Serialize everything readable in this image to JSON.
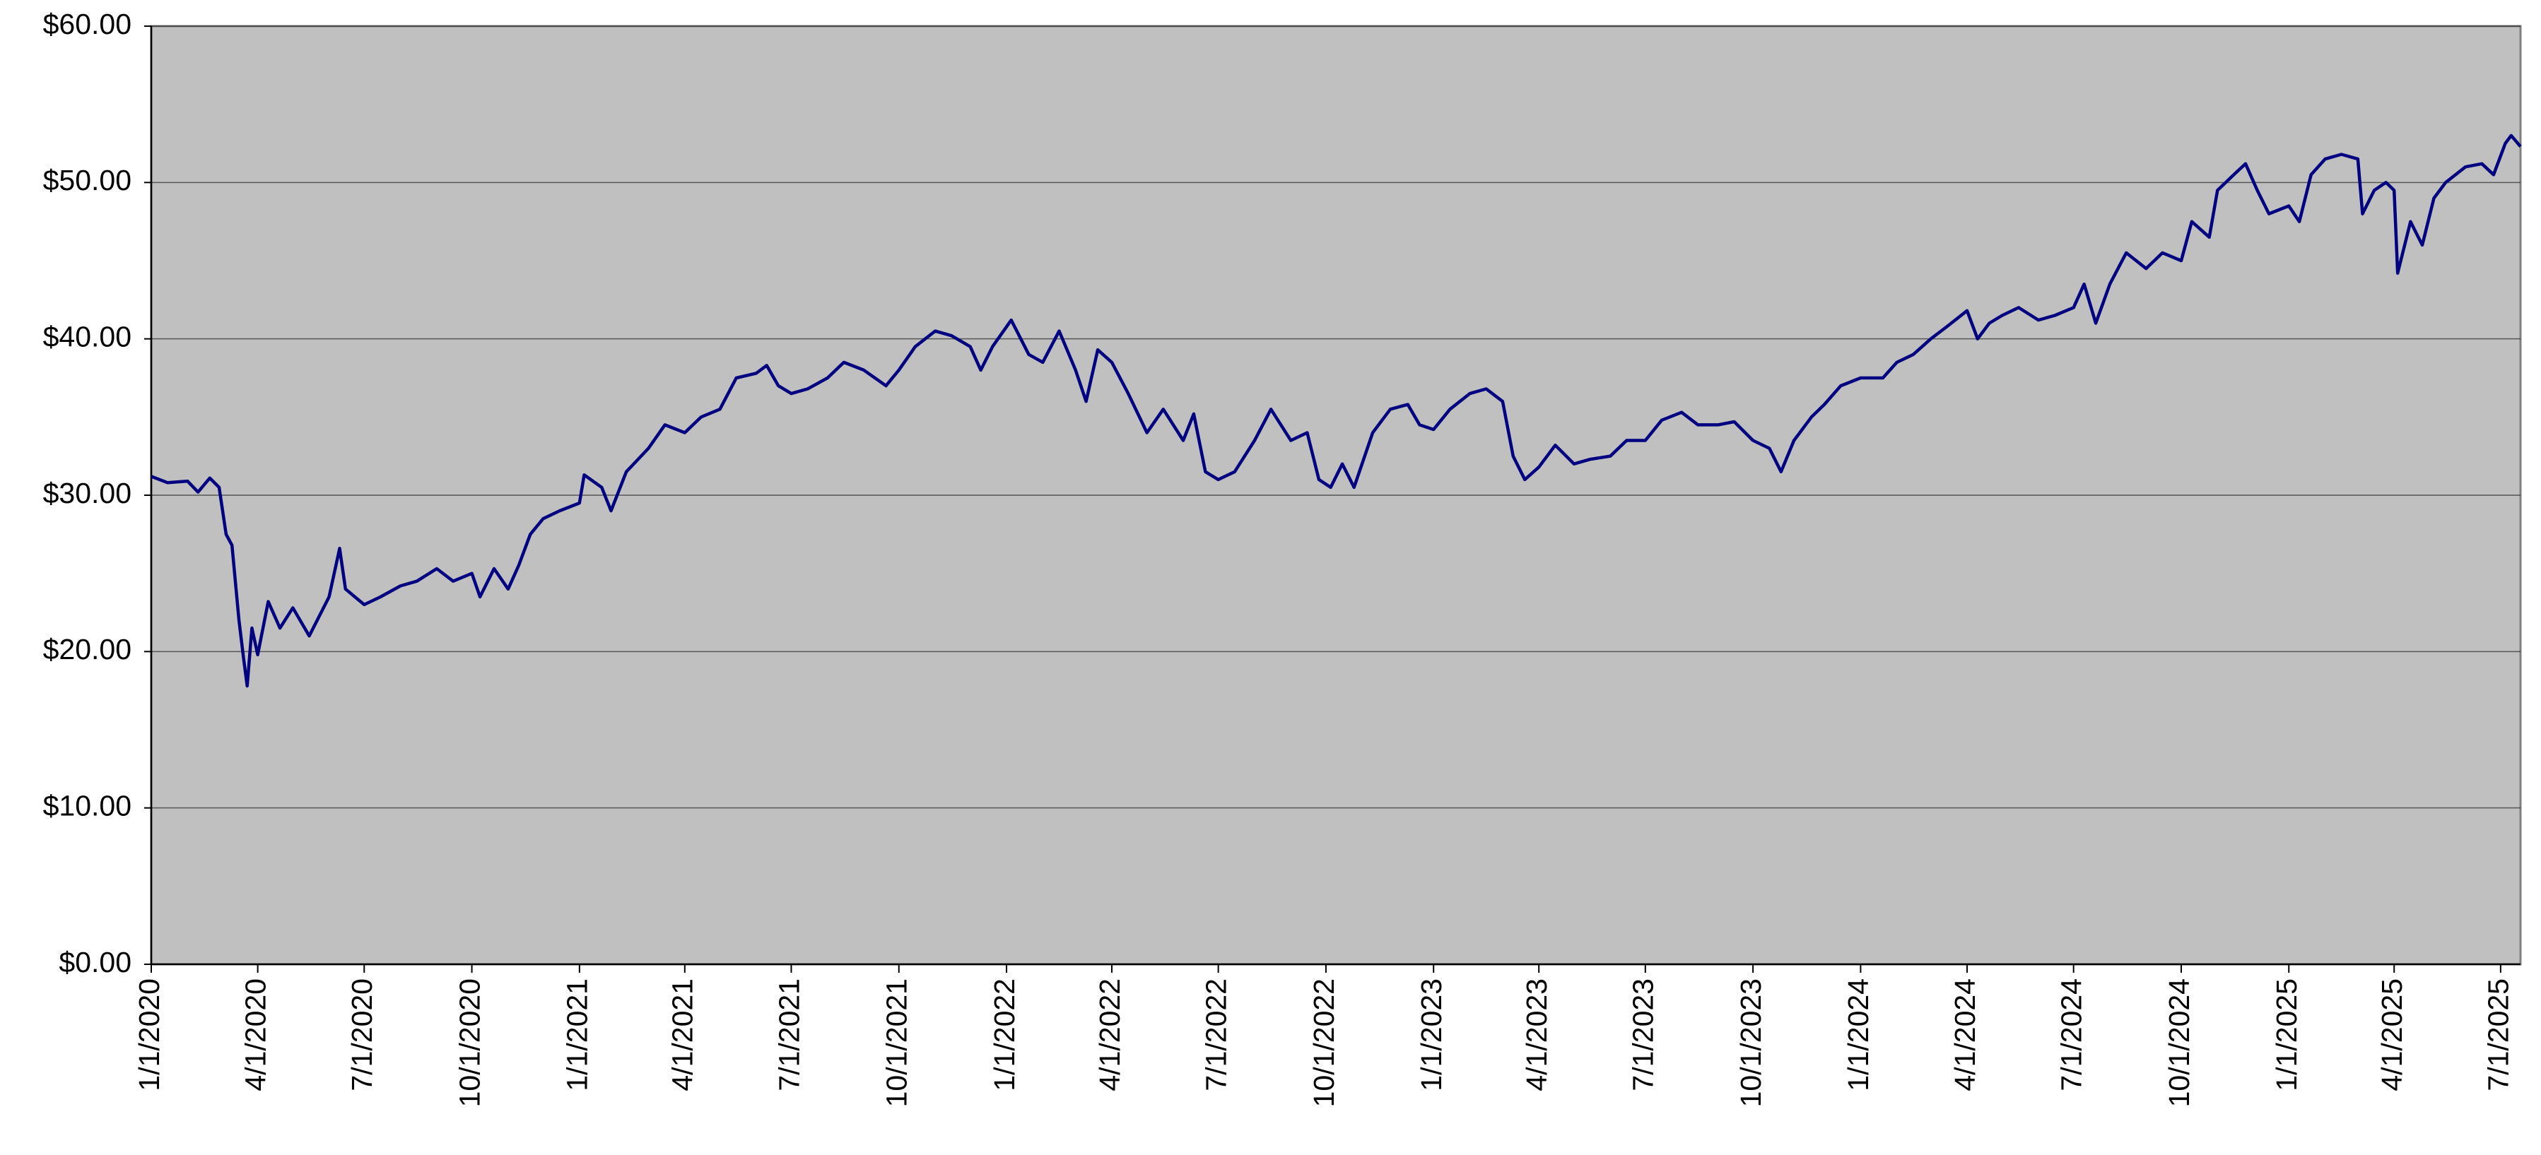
{
  "chart_data": {
    "type": "line",
    "color": "#000080",
    "background": "#c0c0c0",
    "grid": true,
    "xlim": [
      "2020-01-01",
      "2025-07-18"
    ],
    "xticks": [
      {
        "value": "2020-01-01",
        "label": "1/1/2020"
      },
      {
        "value": "2020-04-01",
        "label": "4/1/2020"
      },
      {
        "value": "2020-07-01",
        "label": "7/1/2020"
      },
      {
        "value": "2020-10-01",
        "label": "10/1/2020"
      },
      {
        "value": "2021-01-01",
        "label": "1/1/2021"
      },
      {
        "value": "2021-04-01",
        "label": "4/1/2021"
      },
      {
        "value": "2021-07-01",
        "label": "7/1/2021"
      },
      {
        "value": "2021-10-01",
        "label": "10/1/2021"
      },
      {
        "value": "2022-01-01",
        "label": "1/1/2022"
      },
      {
        "value": "2022-04-01",
        "label": "4/1/2022"
      },
      {
        "value": "2022-07-01",
        "label": "7/1/2022"
      },
      {
        "value": "2022-10-01",
        "label": "10/1/2022"
      },
      {
        "value": "2023-01-01",
        "label": "1/1/2023"
      },
      {
        "value": "2023-04-01",
        "label": "4/1/2023"
      },
      {
        "value": "2023-07-01",
        "label": "7/1/2023"
      },
      {
        "value": "2023-10-01",
        "label": "10/1/2023"
      },
      {
        "value": "2024-01-01",
        "label": "1/1/2024"
      },
      {
        "value": "2024-04-01",
        "label": "4/1/2024"
      },
      {
        "value": "2024-07-01",
        "label": "7/1/2024"
      },
      {
        "value": "2024-10-01",
        "label": "10/1/2024"
      },
      {
        "value": "2025-01-01",
        "label": "1/1/2025"
      },
      {
        "value": "2025-04-01",
        "label": "4/1/2025"
      },
      {
        "value": "2025-07-01",
        "label": "7/1/2025"
      }
    ],
    "ylim": [
      0,
      60
    ],
    "yticks": [
      {
        "value": 0,
        "label": "$0.00"
      },
      {
        "value": 10,
        "label": "$10.00"
      },
      {
        "value": 20,
        "label": "$20.00"
      },
      {
        "value": 30,
        "label": "$30.00"
      },
      {
        "value": 40,
        "label": "$40.00"
      },
      {
        "value": 50,
        "label": "$50.00"
      },
      {
        "value": 60,
        "label": "$60.00"
      }
    ],
    "x": [
      "2020-01-01",
      "2020-01-15",
      "2020-02-01",
      "2020-02-10",
      "2020-02-20",
      "2020-02-28",
      "2020-03-05",
      "2020-03-10",
      "2020-03-16",
      "2020-03-20",
      "2020-03-23",
      "2020-03-27",
      "2020-04-01",
      "2020-04-10",
      "2020-04-20",
      "2020-05-01",
      "2020-05-15",
      "2020-06-01",
      "2020-06-10",
      "2020-06-15",
      "2020-07-01",
      "2020-07-15",
      "2020-08-01",
      "2020-08-15",
      "2020-09-01",
      "2020-09-15",
      "2020-10-01",
      "2020-10-08",
      "2020-10-20",
      "2020-11-01",
      "2020-11-10",
      "2020-11-20",
      "2020-12-01",
      "2020-12-15",
      "2021-01-01",
      "2021-01-05",
      "2021-01-20",
      "2021-01-28",
      "2021-02-10",
      "2021-03-01",
      "2021-03-15",
      "2021-04-01",
      "2021-04-15",
      "2021-05-01",
      "2021-05-15",
      "2021-06-01",
      "2021-06-10",
      "2021-06-20",
      "2021-07-01",
      "2021-07-15",
      "2021-08-01",
      "2021-08-15",
      "2021-09-01",
      "2021-09-20",
      "2021-10-01",
      "2021-10-15",
      "2021-11-01",
      "2021-11-15",
      "2021-12-01",
      "2021-12-10",
      "2021-12-20",
      "2022-01-05",
      "2022-01-20",
      "2022-02-01",
      "2022-02-15",
      "2022-03-01",
      "2022-03-10",
      "2022-03-20",
      "2022-04-01",
      "2022-04-15",
      "2022-05-01",
      "2022-05-15",
      "2022-06-01",
      "2022-06-10",
      "2022-06-20",
      "2022-07-01",
      "2022-07-15",
      "2022-08-01",
      "2022-08-15",
      "2022-09-01",
      "2022-09-15",
      "2022-09-25",
      "2022-10-05",
      "2022-10-15",
      "2022-10-25",
      "2022-11-10",
      "2022-11-25",
      "2022-12-10",
      "2022-12-20",
      "2023-01-01",
      "2023-01-15",
      "2023-02-01",
      "2023-02-15",
      "2023-03-01",
      "2023-03-10",
      "2023-03-20",
      "2023-04-01",
      "2023-04-15",
      "2023-05-01",
      "2023-05-15",
      "2023-06-01",
      "2023-06-15",
      "2023-07-01",
      "2023-07-15",
      "2023-08-01",
      "2023-08-15",
      "2023-09-01",
      "2023-09-15",
      "2023-10-01",
      "2023-10-15",
      "2023-10-25",
      "2023-11-05",
      "2023-11-20",
      "2023-12-01",
      "2023-12-15",
      "2024-01-01",
      "2024-01-20",
      "2024-02-01",
      "2024-02-15",
      "2024-03-01",
      "2024-03-15",
      "2024-04-01",
      "2024-04-10",
      "2024-04-20",
      "2024-05-01",
      "2024-05-15",
      "2024-06-01",
      "2024-06-15",
      "2024-07-01",
      "2024-07-10",
      "2024-07-20",
      "2024-08-01",
      "2024-08-15",
      "2024-09-01",
      "2024-09-15",
      "2024-10-01",
      "2024-10-10",
      "2024-10-25",
      "2024-11-01",
      "2024-11-15",
      "2024-11-25",
      "2024-12-05",
      "2024-12-15",
      "2025-01-01",
      "2025-01-10",
      "2025-01-20",
      "2025-02-01",
      "2025-02-15",
      "2025-03-01",
      "2025-03-05",
      "2025-03-15",
      "2025-03-25",
      "2025-04-01",
      "2025-04-04",
      "2025-04-15",
      "2025-04-25",
      "2025-05-05",
      "2025-05-15",
      "2025-06-01",
      "2025-06-15",
      "2025-06-25",
      "2025-07-05",
      "2025-07-10",
      "2025-07-18"
    ],
    "values": [
      31.2,
      30.8,
      30.9,
      30.2,
      31.1,
      30.5,
      27.5,
      26.8,
      22,
      19.5,
      17.8,
      21.5,
      19.8,
      23.2,
      21.5,
      22.8,
      21,
      23.5,
      26.6,
      24,
      23,
      23.5,
      24.2,
      24.5,
      25.3,
      24.5,
      25,
      23.5,
      25.3,
      24,
      25.5,
      27.5,
      28.5,
      29,
      29.5,
      31.3,
      30.5,
      29,
      31.5,
      33,
      34.5,
      34,
      35,
      35.5,
      37.5,
      37.8,
      38.3,
      37,
      36.5,
      36.8,
      37.5,
      38.5,
      38,
      37,
      38,
      39.5,
      40.5,
      40.2,
      39.5,
      38,
      39.5,
      41.2,
      39,
      38.5,
      40.5,
      38,
      36,
      39.3,
      38.5,
      36.5,
      34,
      35.5,
      33.5,
      35.2,
      31.5,
      31,
      31.5,
      33.5,
      35.5,
      33.5,
      34,
      31,
      30.5,
      32,
      30.5,
      34,
      35.5,
      35.8,
      34.5,
      34.2,
      35.5,
      36.5,
      36.8,
      36,
      32.5,
      31,
      31.8,
      33.2,
      32,
      32.3,
      32.5,
      33.5,
      33.5,
      34.8,
      35.3,
      34.5,
      34.5,
      34.7,
      33.5,
      33,
      31.5,
      33.5,
      35,
      35.8,
      37,
      37.5,
      37.5,
      38.5,
      39,
      40,
      40.8,
      41.8,
      40,
      41,
      41.5,
      42,
      41.2,
      41.5,
      42,
      43.5,
      41,
      43.5,
      45.5,
      44.5,
      45.5,
      45,
      47.5,
      46.5,
      49.5,
      50.5,
      51.2,
      49.5,
      48,
      48.5,
      47.5,
      50.5,
      51.5,
      51.8,
      51.5,
      48,
      49.5,
      50,
      49.5,
      44.2,
      47.5,
      46,
      49,
      50,
      51,
      51.2,
      50.5,
      52.5,
      53,
      52.3
    ]
  }
}
